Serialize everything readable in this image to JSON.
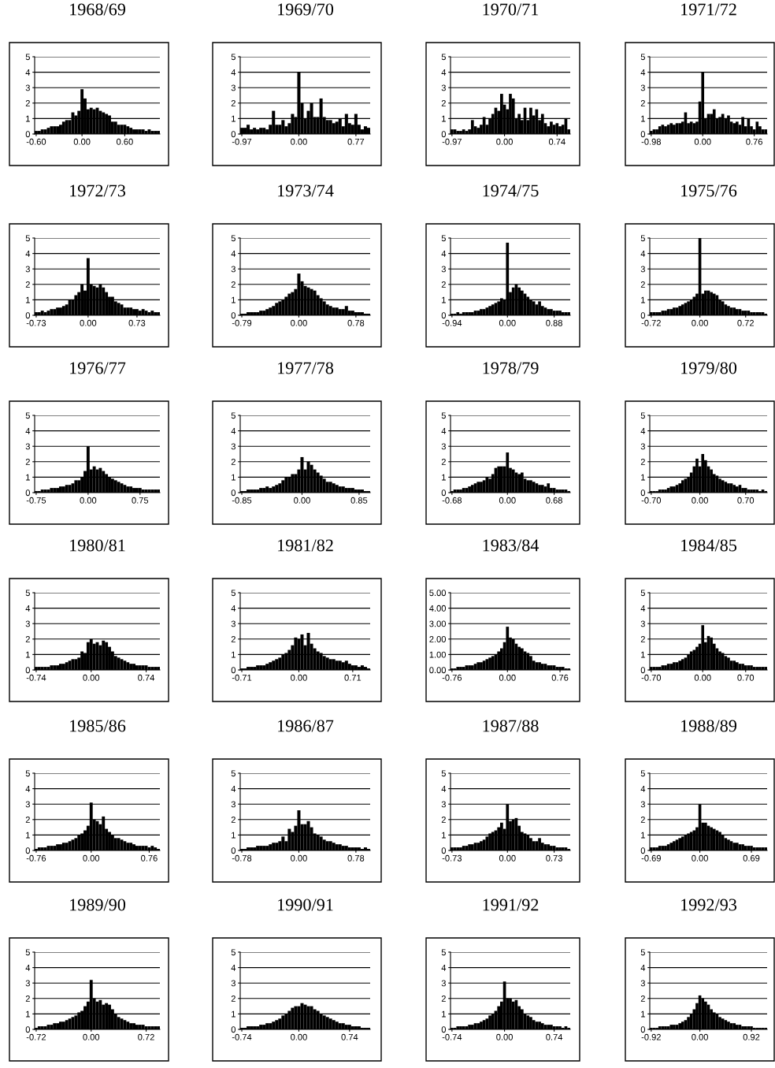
{
  "chart_data": [
    {
      "type": "bar",
      "title": "1968/69",
      "color": "#000000",
      "ylim": [
        0,
        5
      ],
      "yticks": [
        0,
        1,
        2,
        3,
        4,
        5
      ],
      "grid": "y",
      "categories": [
        "-0.60",
        null,
        null,
        null,
        null,
        null,
        null,
        null,
        null,
        null,
        null,
        null,
        null,
        null,
        null,
        "0.00",
        null,
        null,
        null,
        null,
        null,
        null,
        null,
        null,
        null,
        null,
        null,
        null,
        null,
        "0.60",
        null,
        null,
        null,
        null,
        null,
        null,
        null,
        null,
        null,
        null,
        null
      ],
      "values": [
        0.2,
        0.2,
        0.3,
        0.3,
        0.4,
        0.5,
        0.5,
        0.5,
        0.6,
        0.8,
        0.9,
        0.9,
        1.4,
        1.2,
        1.5,
        2.9,
        2.3,
        1.6,
        1.7,
        1.6,
        1.7,
        1.5,
        1.4,
        1.3,
        1.2,
        0.8,
        0.8,
        0.6,
        0.6,
        0.6,
        0.5,
        0.4,
        0.3,
        0.3,
        0.3,
        0.3,
        0.2,
        0.3,
        0.2,
        0.2,
        0.2
      ]
    },
    {
      "type": "bar",
      "title": "1969/70",
      "color": "#000000",
      "ylim": [
        0,
        5
      ],
      "yticks": [
        0,
        1,
        2,
        3,
        4,
        5
      ],
      "grid": "y",
      "categories": [
        "-0.97",
        null,
        null,
        null,
        null,
        null,
        null,
        null,
        null,
        null,
        null,
        null,
        null,
        null,
        null,
        null,
        null,
        null,
        "0.00",
        null,
        null,
        null,
        null,
        null,
        null,
        null,
        null,
        null,
        null,
        null,
        null,
        null,
        null,
        null,
        null,
        null,
        "0.77",
        null,
        null,
        null,
        null
      ],
      "values": [
        0.4,
        0.4,
        0.6,
        0.3,
        0.4,
        0.3,
        0.4,
        0.4,
        0.3,
        0.6,
        1.5,
        0.6,
        0.6,
        0.9,
        0.5,
        0.7,
        1.3,
        1.1,
        4.0,
        2.0,
        1.0,
        1.5,
        2.0,
        1.1,
        1.1,
        2.3,
        1.1,
        0.9,
        0.9,
        0.7,
        0.8,
        1.0,
        0.5,
        1.3,
        0.7,
        0.6,
        1.3,
        0.6,
        0.3,
        0.5,
        0.4
      ]
    },
    {
      "type": "bar",
      "title": "1970/71",
      "color": "#000000",
      "ylim": [
        0,
        5
      ],
      "yticks": [
        0,
        1,
        2,
        3,
        4,
        5
      ],
      "grid": "y",
      "categories": [
        "-0.97",
        null,
        null,
        null,
        null,
        null,
        null,
        null,
        null,
        null,
        null,
        null,
        null,
        null,
        null,
        null,
        null,
        null,
        "0.00",
        null,
        null,
        null,
        null,
        null,
        null,
        null,
        null,
        null,
        null,
        null,
        null,
        null,
        null,
        null,
        null,
        null,
        "0.74",
        null,
        null,
        null,
        null
      ],
      "values": [
        0.3,
        0.3,
        0.2,
        0.2,
        0.3,
        0.2,
        0.3,
        0.9,
        0.5,
        0.4,
        0.6,
        1.1,
        0.6,
        1.0,
        1.3,
        1.7,
        1.5,
        2.6,
        1.9,
        1.6,
        2.6,
        2.3,
        1.0,
        1.3,
        0.9,
        1.7,
        0.9,
        1.7,
        1.2,
        1.6,
        0.9,
        1.3,
        0.7,
        0.5,
        0.8,
        0.6,
        0.7,
        0.5,
        0.6,
        1.0,
        0.3
      ]
    },
    {
      "type": "bar",
      "title": "1971/72",
      "color": "#000000",
      "ylim": [
        0,
        5
      ],
      "yticks": [
        0,
        1,
        2,
        3,
        4,
        5
      ],
      "grid": "y",
      "categories": [
        "-0.98",
        null,
        null,
        null,
        null,
        null,
        null,
        null,
        null,
        null,
        null,
        null,
        null,
        null,
        null,
        null,
        null,
        null,
        "0.00",
        null,
        null,
        null,
        null,
        null,
        null,
        null,
        null,
        null,
        null,
        null,
        null,
        null,
        null,
        null,
        null,
        null,
        "0.76",
        null,
        null,
        null,
        null
      ],
      "values": [
        0.2,
        0.3,
        0.3,
        0.5,
        0.6,
        0.5,
        0.6,
        0.7,
        0.6,
        0.7,
        0.7,
        0.8,
        1.4,
        0.7,
        0.8,
        0.7,
        0.8,
        2.1,
        4.0,
        1.0,
        1.3,
        1.3,
        1.6,
        1.0,
        1.1,
        1.3,
        1.0,
        1.2,
        0.8,
        0.7,
        0.8,
        0.6,
        1.1,
        0.5,
        1.0,
        0.5,
        0.3,
        0.8,
        0.5,
        0.3,
        0.3
      ]
    },
    {
      "type": "bar",
      "title": "1972/73",
      "color": "#000000",
      "ylim": [
        0,
        5
      ],
      "yticks": [
        0,
        1,
        2,
        3,
        4,
        5
      ],
      "grid": "y",
      "categories": [
        "-0.73",
        null,
        null,
        null,
        null,
        null,
        null,
        null,
        null,
        null,
        null,
        null,
        null,
        null,
        null,
        null,
        null,
        "0.00",
        null,
        null,
        null,
        null,
        null,
        null,
        null,
        null,
        null,
        null,
        null,
        null,
        null,
        null,
        null,
        "0.73",
        null,
        null,
        null,
        null,
        null,
        null,
        null
      ],
      "values": [
        0.2,
        0.2,
        0.3,
        0.2,
        0.3,
        0.4,
        0.4,
        0.5,
        0.5,
        0.6,
        0.7,
        1.0,
        1.0,
        1.3,
        1.5,
        2.0,
        1.6,
        3.7,
        2.0,
        1.9,
        1.8,
        2.0,
        1.8,
        1.5,
        1.2,
        1.2,
        0.9,
        0.8,
        0.7,
        0.5,
        0.5,
        0.5,
        0.4,
        0.4,
        0.3,
        0.4,
        0.3,
        0.2,
        0.3,
        0.2,
        0.2
      ]
    },
    {
      "type": "bar",
      "title": "1973/74",
      "color": "#000000",
      "ylim": [
        0,
        5
      ],
      "yticks": [
        0,
        1,
        2,
        3,
        4,
        5
      ],
      "grid": "y",
      "categories": [
        "-0.79",
        null,
        null,
        null,
        null,
        null,
        null,
        null,
        null,
        null,
        null,
        null,
        null,
        null,
        null,
        null,
        null,
        null,
        "0.00",
        null,
        null,
        null,
        null,
        null,
        null,
        null,
        null,
        null,
        null,
        null,
        null,
        null,
        null,
        null,
        null,
        null,
        "0.78",
        null,
        null,
        null,
        null
      ],
      "values": [
        0.1,
        0.1,
        0.2,
        0.2,
        0.2,
        0.2,
        0.3,
        0.3,
        0.4,
        0.5,
        0.6,
        0.8,
        0.9,
        1.0,
        1.2,
        1.4,
        1.5,
        1.7,
        2.7,
        2.2,
        1.9,
        1.8,
        1.7,
        1.6,
        1.3,
        1.1,
        0.9,
        0.7,
        0.6,
        0.5,
        0.5,
        0.4,
        0.4,
        0.6,
        0.3,
        0.3,
        0.2,
        0.2,
        0.2,
        0.1,
        0.1
      ]
    },
    {
      "type": "bar",
      "title": "1974/75",
      "color": "#000000",
      "ylim": [
        0,
        5
      ],
      "yticks": [
        0,
        1,
        2,
        3,
        4,
        5
      ],
      "grid": "y",
      "categories": [
        "-0.94",
        null,
        null,
        null,
        null,
        null,
        null,
        null,
        null,
        null,
        null,
        null,
        null,
        null,
        null,
        null,
        null,
        null,
        null,
        "0.00",
        null,
        null,
        null,
        null,
        null,
        null,
        null,
        null,
        null,
        null,
        null,
        null,
        null,
        null,
        null,
        "0.88",
        null,
        null,
        null,
        null,
        null
      ],
      "values": [
        0.1,
        0.1,
        0.2,
        0.1,
        0.2,
        0.2,
        0.2,
        0.2,
        0.3,
        0.3,
        0.4,
        0.4,
        0.5,
        0.6,
        0.7,
        0.8,
        0.9,
        1.1,
        1.0,
        4.7,
        1.5,
        1.8,
        2.0,
        1.8,
        1.6,
        1.4,
        1.2,
        1.0,
        0.9,
        0.7,
        0.9,
        0.6,
        0.5,
        0.4,
        0.4,
        0.3,
        0.3,
        0.3,
        0.2,
        0.2,
        0.2
      ]
    },
    {
      "type": "bar",
      "title": "1975/76",
      "color": "#000000",
      "ylim": [
        0,
        5
      ],
      "yticks": [
        0,
        1,
        2,
        3,
        4,
        5
      ],
      "grid": "y",
      "categories": [
        "-0.72",
        null,
        null,
        null,
        null,
        null,
        null,
        null,
        null,
        null,
        null,
        null,
        null,
        null,
        null,
        null,
        null,
        "0.00",
        null,
        null,
        null,
        null,
        null,
        null,
        null,
        null,
        null,
        null,
        null,
        null,
        null,
        null,
        null,
        "0.72",
        null,
        null,
        null,
        null,
        null,
        null,
        null
      ],
      "values": [
        0.2,
        0.2,
        0.2,
        0.2,
        0.3,
        0.3,
        0.4,
        0.4,
        0.5,
        0.5,
        0.6,
        0.7,
        0.8,
        0.9,
        1.0,
        1.2,
        1.4,
        5.0,
        1.4,
        1.6,
        1.6,
        1.5,
        1.4,
        1.3,
        1.0,
        0.9,
        0.7,
        0.6,
        0.5,
        0.5,
        0.4,
        0.4,
        0.3,
        0.3,
        0.3,
        0.2,
        0.2,
        0.2,
        0.2,
        0.2,
        0.1
      ]
    },
    {
      "type": "bar",
      "title": "1976/77",
      "color": "#000000",
      "ylim": [
        0,
        5
      ],
      "yticks": [
        0,
        1,
        2,
        3,
        4,
        5
      ],
      "grid": "y",
      "categories": [
        "-0.75",
        null,
        null,
        null,
        null,
        null,
        null,
        null,
        null,
        null,
        null,
        null,
        null,
        null,
        null,
        null,
        null,
        "0.00",
        null,
        null,
        null,
        null,
        null,
        null,
        null,
        null,
        null,
        null,
        null,
        null,
        null,
        null,
        null,
        null,
        "0.75",
        null,
        null,
        null,
        null,
        null,
        null
      ],
      "values": [
        0.1,
        0.1,
        0.2,
        0.2,
        0.2,
        0.3,
        0.3,
        0.3,
        0.4,
        0.4,
        0.5,
        0.5,
        0.6,
        0.8,
        0.8,
        1.0,
        1.4,
        3.0,
        1.5,
        1.7,
        1.5,
        1.6,
        1.4,
        1.2,
        1.0,
        0.9,
        0.8,
        0.7,
        0.6,
        0.5,
        0.4,
        0.4,
        0.3,
        0.3,
        0.3,
        0.2,
        0.2,
        0.2,
        0.2,
        0.2,
        0.2
      ]
    },
    {
      "type": "bar",
      "title": "1977/78",
      "color": "#000000",
      "ylim": [
        0,
        5
      ],
      "yticks": [
        0,
        1,
        2,
        3,
        4,
        5
      ],
      "grid": "y",
      "categories": [
        "-0.85",
        null,
        null,
        null,
        null,
        null,
        null,
        null,
        null,
        null,
        null,
        null,
        null,
        null,
        null,
        null,
        null,
        null,
        null,
        "0.00",
        null,
        null,
        null,
        null,
        null,
        null,
        null,
        null,
        null,
        null,
        null,
        null,
        null,
        null,
        null,
        null,
        null,
        "0.85",
        null,
        null,
        null
      ],
      "values": [
        0.1,
        0.1,
        0.2,
        0.2,
        0.2,
        0.2,
        0.3,
        0.3,
        0.4,
        0.3,
        0.4,
        0.5,
        0.6,
        0.8,
        1.0,
        1.0,
        1.2,
        1.2,
        1.5,
        2.3,
        1.5,
        2.0,
        1.8,
        1.5,
        1.3,
        1.1,
        0.9,
        0.7,
        0.7,
        0.6,
        0.5,
        0.4,
        0.4,
        0.3,
        0.3,
        0.3,
        0.2,
        0.2,
        0.2,
        0.1,
        0.1
      ]
    },
    {
      "type": "bar",
      "title": "1978/79",
      "color": "#000000",
      "ylim": [
        0,
        5
      ],
      "yticks": [
        0,
        1,
        2,
        3,
        4,
        5
      ],
      "grid": "y",
      "categories": [
        "-0.68",
        null,
        null,
        null,
        null,
        null,
        null,
        null,
        null,
        null,
        null,
        null,
        null,
        null,
        null,
        null,
        null,
        null,
        null,
        "0.00",
        null,
        null,
        null,
        null,
        null,
        null,
        null,
        null,
        null,
        null,
        null,
        null,
        null,
        null,
        null,
        "0.68",
        null,
        null,
        null,
        null,
        null
      ],
      "values": [
        0.1,
        0.2,
        0.2,
        0.2,
        0.3,
        0.3,
        0.4,
        0.5,
        0.6,
        0.7,
        0.7,
        0.8,
        1.0,
        0.9,
        1.2,
        1.6,
        1.7,
        1.7,
        1.7,
        2.6,
        1.6,
        1.5,
        1.3,
        1.2,
        1.3,
        0.9,
        0.8,
        0.8,
        0.7,
        0.6,
        0.5,
        0.5,
        0.4,
        0.6,
        0.3,
        0.3,
        0.2,
        0.2,
        0.2,
        0.2,
        0.1
      ]
    },
    {
      "type": "bar",
      "title": "1979/80",
      "color": "#000000",
      "ylim": [
        0,
        5
      ],
      "yticks": [
        0,
        1,
        2,
        3,
        4,
        5
      ],
      "grid": "y",
      "categories": [
        "-0.70",
        null,
        null,
        null,
        null,
        null,
        null,
        null,
        null,
        null,
        null,
        null,
        null,
        null,
        null,
        null,
        null,
        "0.00",
        null,
        null,
        null,
        null,
        null,
        null,
        null,
        null,
        null,
        null,
        null,
        null,
        null,
        null,
        null,
        "0.70",
        null,
        null,
        null,
        null,
        null,
        null,
        null
      ],
      "values": [
        0.1,
        0.1,
        0.1,
        0.2,
        0.2,
        0.2,
        0.3,
        0.4,
        0.4,
        0.5,
        0.6,
        0.8,
        0.9,
        1.0,
        1.3,
        1.7,
        2.2,
        1.7,
        2.5,
        2.1,
        1.7,
        1.5,
        1.2,
        1.1,
        0.9,
        0.8,
        0.7,
        0.6,
        0.6,
        0.5,
        0.4,
        0.5,
        0.3,
        0.3,
        0.2,
        0.2,
        0.2,
        0.2,
        0.1,
        0.2,
        0.1
      ]
    },
    {
      "type": "bar",
      "title": "1980/81",
      "color": "#000000",
      "ylim": [
        0,
        5
      ],
      "yticks": [
        0,
        1,
        2,
        3,
        4,
        5
      ],
      "grid": "y",
      "categories": [
        "-0.74",
        null,
        null,
        null,
        null,
        null,
        null,
        null,
        null,
        null,
        null,
        null,
        null,
        null,
        null,
        null,
        null,
        null,
        "0.00",
        null,
        null,
        null,
        null,
        null,
        null,
        null,
        null,
        null,
        null,
        null,
        null,
        null,
        null,
        null,
        null,
        null,
        "0.74",
        null,
        null,
        null,
        null
      ],
      "values": [
        0.2,
        0.2,
        0.2,
        0.2,
        0.2,
        0.3,
        0.3,
        0.3,
        0.4,
        0.4,
        0.5,
        0.6,
        0.7,
        0.7,
        0.8,
        1.2,
        1.1,
        1.8,
        2.0,
        1.7,
        1.8,
        1.6,
        1.9,
        1.8,
        1.5,
        1.2,
        0.9,
        0.8,
        0.7,
        0.6,
        0.5,
        0.4,
        0.4,
        0.3,
        0.3,
        0.3,
        0.3,
        0.2,
        0.2,
        0.2,
        0.2
      ]
    },
    {
      "type": "bar",
      "title": "1981/82",
      "color": "#000000",
      "ylim": [
        0,
        5
      ],
      "yticks": [
        0,
        1,
        2,
        3,
        4,
        5
      ],
      "grid": "y",
      "categories": [
        "-0.71",
        null,
        null,
        null,
        null,
        null,
        null,
        null,
        null,
        null,
        null,
        null,
        null,
        null,
        null,
        null,
        null,
        null,
        "0.00",
        null,
        null,
        null,
        null,
        null,
        null,
        null,
        null,
        null,
        null,
        null,
        null,
        null,
        null,
        null,
        null,
        "0.71",
        null,
        null,
        null,
        null,
        null
      ],
      "values": [
        0.1,
        0.1,
        0.2,
        0.2,
        0.2,
        0.3,
        0.3,
        0.3,
        0.4,
        0.5,
        0.6,
        0.7,
        0.8,
        1.0,
        1.1,
        1.3,
        1.6,
        2.1,
        2.0,
        2.3,
        1.6,
        2.4,
        1.7,
        1.4,
        1.2,
        1.1,
        0.9,
        0.8,
        0.7,
        0.7,
        0.6,
        0.6,
        0.5,
        0.6,
        0.4,
        0.3,
        0.3,
        0.2,
        0.3,
        0.2,
        0.1
      ]
    },
    {
      "type": "bar",
      "title": "1983/84",
      "color": "#000000",
      "ylim": [
        0,
        5
      ],
      "yticks": [
        {
          "value": 0,
          "label": "0.00"
        },
        {
          "value": 1,
          "label": "1.00"
        },
        {
          "value": 2,
          "label": "2.00"
        },
        {
          "value": 3,
          "label": "3.00"
        },
        {
          "value": 4,
          "label": "4.00"
        },
        {
          "value": 5,
          "label": "5.00"
        }
      ],
      "grid": "y",
      "categories": [
        "-0.76",
        null,
        null,
        null,
        null,
        null,
        null,
        null,
        null,
        null,
        null,
        null,
        null,
        null,
        null,
        null,
        null,
        null,
        null,
        "0.00",
        null,
        null,
        null,
        null,
        null,
        null,
        null,
        null,
        null,
        null,
        null,
        null,
        null,
        null,
        null,
        null,
        null,
        "0.76",
        null,
        null,
        null
      ],
      "values": [
        0.1,
        0.1,
        0.2,
        0.2,
        0.2,
        0.3,
        0.3,
        0.3,
        0.4,
        0.5,
        0.5,
        0.6,
        0.7,
        0.8,
        0.9,
        1.0,
        1.2,
        1.4,
        1.8,
        2.8,
        2.1,
        2.0,
        1.7,
        1.5,
        1.4,
        1.2,
        1.1,
        0.9,
        0.6,
        0.5,
        0.5,
        0.4,
        0.4,
        0.3,
        0.3,
        0.3,
        0.2,
        0.2,
        0.2,
        0.1,
        0.1
      ]
    },
    {
      "type": "bar",
      "title": "1984/85",
      "color": "#000000",
      "ylim": [
        0,
        5
      ],
      "yticks": [
        0,
        1,
        2,
        3,
        4,
        5
      ],
      "grid": "y",
      "categories": [
        "-0.70",
        null,
        null,
        null,
        null,
        null,
        null,
        null,
        null,
        null,
        null,
        null,
        null,
        null,
        null,
        null,
        null,
        null,
        "0.00",
        null,
        null,
        null,
        null,
        null,
        null,
        null,
        null,
        null,
        null,
        null,
        null,
        null,
        null,
        "0.70",
        null,
        null,
        null,
        null,
        null,
        null,
        null
      ],
      "values": [
        0.2,
        0.2,
        0.2,
        0.2,
        0.3,
        0.3,
        0.4,
        0.4,
        0.5,
        0.5,
        0.6,
        0.7,
        0.8,
        1.0,
        1.2,
        1.3,
        1.5,
        1.7,
        2.9,
        1.8,
        2.2,
        2.1,
        1.7,
        1.4,
        1.2,
        1.1,
        0.9,
        0.8,
        0.6,
        0.6,
        0.5,
        0.4,
        0.4,
        0.3,
        0.3,
        0.3,
        0.2,
        0.2,
        0.2,
        0.2,
        0.2
      ]
    },
    {
      "type": "bar",
      "title": "1985/86",
      "color": "#000000",
      "ylim": [
        0,
        5
      ],
      "yticks": [
        0,
        1,
        2,
        3,
        4,
        5
      ],
      "grid": "y",
      "categories": [
        "-0.76",
        null,
        null,
        null,
        null,
        null,
        null,
        null,
        null,
        null,
        null,
        null,
        null,
        null,
        null,
        null,
        null,
        null,
        "0.00",
        null,
        null,
        null,
        null,
        null,
        null,
        null,
        null,
        null,
        null,
        null,
        null,
        null,
        null,
        null,
        null,
        null,
        null,
        "0.76",
        null,
        null,
        null
      ],
      "values": [
        0.1,
        0.2,
        0.2,
        0.2,
        0.3,
        0.3,
        0.3,
        0.4,
        0.4,
        0.5,
        0.5,
        0.6,
        0.7,
        0.8,
        1.0,
        1.1,
        1.3,
        1.6,
        3.1,
        2.0,
        1.9,
        1.7,
        2.2,
        1.4,
        1.2,
        1.0,
        0.8,
        0.8,
        0.7,
        0.6,
        0.5,
        0.5,
        0.4,
        0.3,
        0.3,
        0.3,
        0.3,
        0.2,
        0.3,
        0.2,
        0.1
      ]
    },
    {
      "type": "bar",
      "title": "1986/87",
      "color": "#000000",
      "ylim": [
        0,
        5
      ],
      "yticks": [
        0,
        1,
        2,
        3,
        4,
        5
      ],
      "grid": "y",
      "categories": [
        "-0.78",
        null,
        null,
        null,
        null,
        null,
        null,
        null,
        null,
        null,
        null,
        null,
        null,
        null,
        null,
        null,
        null,
        null,
        "0.00",
        null,
        null,
        null,
        null,
        null,
        null,
        null,
        null,
        null,
        null,
        null,
        null,
        null,
        null,
        null,
        null,
        null,
        "0.78",
        null,
        null,
        null,
        null
      ],
      "values": [
        0.1,
        0.1,
        0.2,
        0.2,
        0.2,
        0.3,
        0.3,
        0.3,
        0.3,
        0.4,
        0.5,
        0.5,
        0.6,
        0.9,
        0.6,
        1.4,
        1.2,
        1.6,
        2.6,
        1.7,
        1.7,
        1.9,
        1.5,
        1.1,
        1.0,
        0.9,
        0.7,
        0.6,
        0.6,
        0.5,
        0.4,
        0.4,
        0.3,
        0.3,
        0.2,
        0.2,
        0.2,
        0.2,
        0.1,
        0.2,
        0.1
      ]
    },
    {
      "type": "bar",
      "title": "1987/88",
      "color": "#000000",
      "ylim": [
        0,
        5
      ],
      "yticks": [
        0,
        1,
        2,
        3,
        4,
        5
      ],
      "grid": "y",
      "categories": [
        "-0.73",
        null,
        null,
        null,
        null,
        null,
        null,
        null,
        null,
        null,
        null,
        null,
        null,
        null,
        null,
        null,
        null,
        null,
        null,
        "0.00",
        null,
        null,
        null,
        null,
        null,
        null,
        null,
        null,
        null,
        null,
        null,
        null,
        null,
        null,
        null,
        "0.73",
        null,
        null,
        null,
        null,
        null
      ],
      "values": [
        0.2,
        0.2,
        0.2,
        0.2,
        0.3,
        0.3,
        0.4,
        0.4,
        0.5,
        0.5,
        0.6,
        0.7,
        0.9,
        1.1,
        1.2,
        1.3,
        1.5,
        1.8,
        1.4,
        3.0,
        1.9,
        2.0,
        2.1,
        1.6,
        1.2,
        1.1,
        1.0,
        0.8,
        0.6,
        0.6,
        0.8,
        0.5,
        0.4,
        0.4,
        0.3,
        0.3,
        0.2,
        0.2,
        0.2,
        0.2,
        0.1
      ]
    },
    {
      "type": "bar",
      "title": "1988/89",
      "color": "#000000",
      "ylim": [
        0,
        5
      ],
      "yticks": [
        0,
        1,
        2,
        3,
        4,
        5
      ],
      "grid": "y",
      "categories": [
        "-0.69",
        null,
        null,
        null,
        null,
        null,
        null,
        null,
        null,
        null,
        null,
        null,
        null,
        null,
        null,
        null,
        null,
        "0.00",
        null,
        null,
        null,
        null,
        null,
        null,
        null,
        null,
        null,
        null,
        null,
        null,
        null,
        null,
        null,
        null,
        null,
        "0.69",
        null,
        null,
        null,
        null,
        null
      ],
      "values": [
        0.2,
        0.2,
        0.2,
        0.3,
        0.3,
        0.3,
        0.4,
        0.5,
        0.6,
        0.7,
        0.8,
        0.9,
        1.0,
        1.1,
        1.2,
        1.3,
        1.5,
        3.0,
        1.8,
        1.8,
        1.6,
        1.5,
        1.4,
        1.3,
        1.2,
        1.0,
        0.8,
        0.7,
        0.6,
        0.5,
        0.5,
        0.4,
        0.4,
        0.3,
        0.3,
        0.3,
        0.2,
        0.2,
        0.2,
        0.2,
        0.2
      ]
    },
    {
      "type": "bar",
      "title": "1989/90",
      "color": "#000000",
      "ylim": [
        0,
        5
      ],
      "yticks": [
        0,
        1,
        2,
        3,
        4,
        5
      ],
      "grid": "y",
      "categories": [
        "-0.72",
        null,
        null,
        null,
        null,
        null,
        null,
        null,
        null,
        null,
        null,
        null,
        null,
        null,
        null,
        null,
        null,
        null,
        "0.00",
        null,
        null,
        null,
        null,
        null,
        null,
        null,
        null,
        null,
        null,
        null,
        null,
        null,
        null,
        null,
        null,
        null,
        "0.72",
        null,
        null,
        null,
        null
      ],
      "values": [
        0.1,
        0.2,
        0.2,
        0.2,
        0.3,
        0.3,
        0.4,
        0.4,
        0.5,
        0.5,
        0.6,
        0.7,
        0.8,
        0.9,
        1.1,
        1.2,
        1.5,
        1.8,
        3.2,
        2.0,
        1.8,
        1.9,
        1.6,
        1.7,
        1.6,
        1.3,
        1.0,
        0.8,
        0.7,
        0.6,
        0.5,
        0.4,
        0.4,
        0.3,
        0.3,
        0.3,
        0.2,
        0.2,
        0.2,
        0.2,
        0.2
      ]
    },
    {
      "type": "bar",
      "title": "1990/91",
      "color": "#000000",
      "ylim": [
        0,
        5
      ],
      "yticks": [
        0,
        1,
        2,
        3,
        4,
        5
      ],
      "grid": "y",
      "categories": [
        "-0.74",
        null,
        null,
        null,
        null,
        null,
        null,
        null,
        null,
        null,
        null,
        null,
        null,
        null,
        null,
        null,
        null,
        null,
        "0.00",
        null,
        null,
        null,
        null,
        null,
        null,
        null,
        null,
        null,
        null,
        null,
        null,
        null,
        null,
        null,
        "0.74",
        null,
        null,
        null,
        null,
        null,
        null
      ],
      "values": [
        0.1,
        0.1,
        0.2,
        0.2,
        0.2,
        0.2,
        0.3,
        0.3,
        0.4,
        0.4,
        0.5,
        0.6,
        0.7,
        0.9,
        1.0,
        1.2,
        1.4,
        1.5,
        1.5,
        1.7,
        1.6,
        1.5,
        1.5,
        1.3,
        1.2,
        1.0,
        0.9,
        0.8,
        0.7,
        0.6,
        0.5,
        0.4,
        0.4,
        0.3,
        0.3,
        0.2,
        0.2,
        0.2,
        0.1,
        0.1,
        0.1
      ]
    },
    {
      "type": "bar",
      "title": "1991/92",
      "color": "#000000",
      "ylim": [
        0,
        5
      ],
      "yticks": [
        0,
        1,
        2,
        3,
        4,
        5
      ],
      "grid": "y",
      "categories": [
        "-0.74",
        null,
        null,
        null,
        null,
        null,
        null,
        null,
        null,
        null,
        null,
        null,
        null,
        null,
        null,
        null,
        null,
        null,
        "0.00",
        null,
        null,
        null,
        null,
        null,
        null,
        null,
        null,
        null,
        null,
        null,
        null,
        null,
        null,
        null,
        null,
        "0.74",
        null,
        null,
        null,
        null,
        null
      ],
      "values": [
        0.1,
        0.1,
        0.2,
        0.2,
        0.2,
        0.2,
        0.3,
        0.3,
        0.4,
        0.4,
        0.5,
        0.6,
        0.7,
        0.9,
        1.0,
        1.2,
        1.5,
        1.8,
        3.1,
        2.0,
        2.0,
        1.8,
        1.9,
        1.5,
        1.3,
        1.0,
        0.9,
        0.8,
        0.6,
        0.5,
        0.5,
        0.4,
        0.3,
        0.3,
        0.3,
        0.2,
        0.2,
        0.2,
        0.1,
        0.2,
        0.1
      ]
    },
    {
      "type": "bar",
      "title": "1992/93",
      "color": "#000000",
      "ylim": [
        0,
        5
      ],
      "yticks": [
        0,
        1,
        2,
        3,
        4,
        5
      ],
      "grid": "y",
      "categories": [
        "-0.92",
        null,
        null,
        null,
        null,
        null,
        null,
        null,
        null,
        null,
        null,
        null,
        null,
        null,
        null,
        null,
        null,
        "0.00",
        null,
        null,
        null,
        null,
        null,
        null,
        null,
        null,
        null,
        null,
        null,
        null,
        null,
        null,
        null,
        null,
        null,
        "0.92",
        null,
        null,
        null,
        null,
        null
      ],
      "values": [
        0.1,
        0.1,
        0.1,
        0.2,
        0.2,
        0.2,
        0.2,
        0.3,
        0.3,
        0.3,
        0.4,
        0.5,
        0.6,
        0.8,
        1.0,
        1.3,
        1.7,
        2.2,
        2.0,
        1.8,
        1.6,
        1.3,
        1.1,
        1.0,
        0.8,
        0.7,
        0.6,
        0.5,
        0.4,
        0.4,
        0.3,
        0.3,
        0.2,
        0.2,
        0.2,
        0.2,
        0.1,
        0.1,
        0.1,
        0.1,
        0.1
      ]
    }
  ]
}
